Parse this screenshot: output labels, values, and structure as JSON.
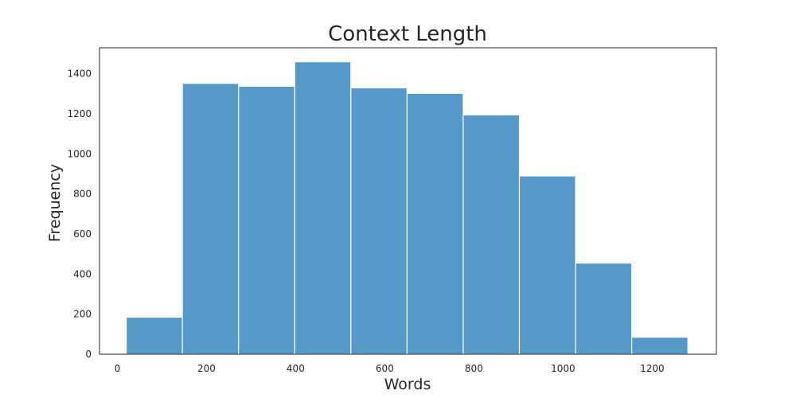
{
  "chart_data": {
    "type": "histogram",
    "title": "Context Length",
    "xlabel": "Words",
    "ylabel": "Frequency",
    "xlim": [
      -40,
      1344
    ],
    "ylim": [
      0,
      1530
    ],
    "x_ticks": [
      0,
      200,
      400,
      600,
      800,
      1000,
      1200
    ],
    "y_ticks": [
      0,
      200,
      400,
      600,
      800,
      1000,
      1200,
      1400
    ],
    "grid": false,
    "bar_color": "#5599c8",
    "bar_edge_color": "#ffffff",
    "bins": [
      {
        "x0": 20,
        "x1": 146,
        "count": 185
      },
      {
        "x0": 146,
        "x1": 272,
        "count": 1352
      },
      {
        "x0": 272,
        "x1": 398,
        "count": 1338
      },
      {
        "x0": 398,
        "x1": 524,
        "count": 1460
      },
      {
        "x0": 524,
        "x1": 650,
        "count": 1330
      },
      {
        "x0": 650,
        "x1": 776,
        "count": 1302
      },
      {
        "x0": 776,
        "x1": 902,
        "count": 1195
      },
      {
        "x0": 902,
        "x1": 1028,
        "count": 890
      },
      {
        "x0": 1028,
        "x1": 1154,
        "count": 455
      },
      {
        "x0": 1154,
        "x1": 1280,
        "count": 85
      }
    ]
  }
}
